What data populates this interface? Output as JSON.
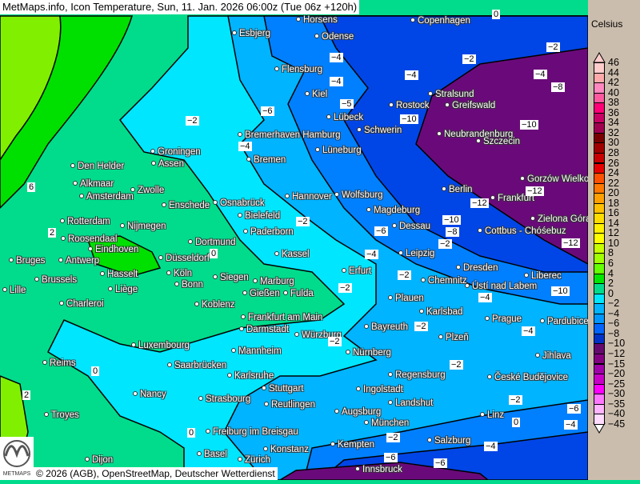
{
  "title": "MetMaps.info, Icon Temperature, Sun, 11. Jan. 2026 06:00z (Tue 06z +120h)",
  "copyright": "© 2026 (AGB), OpenStreetMap, Deutscher Wetterdienst",
  "logo_text": "METMAPS",
  "legend": {
    "unit": "Celsius",
    "labels": [
      "46",
      "44",
      "42",
      "40",
      "38",
      "36",
      "34",
      "32",
      "30",
      "28",
      "26",
      "24",
      "22",
      "20",
      "18",
      "16",
      "14",
      "12",
      "10",
      "8",
      "6",
      "4",
      "2",
      "0",
      "−2",
      "−4",
      "−6",
      "−8",
      "−10",
      "−12",
      "−15",
      "−20",
      "−25",
      "−30",
      "−35",
      "−40",
      "−45"
    ],
    "colors": [
      "#ffcccc",
      "#ffaaaa",
      "#ff88c0",
      "#ff5aa0",
      "#ff0078",
      "#c80064",
      "#a00050",
      "#780000",
      "#a00000",
      "#c80000",
      "#e60000",
      "#ff5000",
      "#ff7800",
      "#ffa000",
      "#ffc000",
      "#ffdc00",
      "#fff000",
      "#ffff00",
      "#c8ff00",
      "#a0ff00",
      "#64ff00",
      "#00e600",
      "#00dc8c",
      "#00e6ff",
      "#00b4ff",
      "#0096ff",
      "#0064ff",
      "#0032c8",
      "#640a6e",
      "#820082",
      "#a000aa",
      "#c800c8",
      "#ff00ff",
      "#ff78ff",
      "#ffb4ff",
      "#ffdcff"
    ]
  },
  "cities": [
    "Horsens",
    "Copenhagen",
    "Esbjerg",
    "Odense",
    "Flensburg",
    "Kiel",
    "Stralsund",
    "Rostock",
    "Greifswald",
    "Lübeck",
    "Schwerin",
    "Neubrandenburg",
    "Szczecin",
    "Bremerhaven Hamburg",
    "Bremen",
    "Lüneburg",
    "Groningen",
    "Den Helder",
    "Assen",
    "Gorzów Wielkopolski",
    "Alkmaar",
    "Zwolle",
    "Amsterdam",
    "Berlin",
    "Frankfurt",
    "Hannover",
    "Wolfsburg",
    "Enschede",
    "Osnabrück",
    "Magdeburg",
    "Bielefeld",
    "Zielona Góra",
    "Rotterdam",
    "Nijmegen",
    "Dessau",
    "Paderborn",
    "Cottbus - Chóśebuz",
    "Roosendaal",
    "Eindhoven",
    "Dortmund",
    "Leipzig",
    "Kassel",
    "Bruges",
    "Antwerp",
    "Düsseldorf",
    "Dresden",
    "Erfurt",
    "Brussels",
    "Hasselt",
    "Köln",
    "Siegen",
    "Marburg",
    "Chemnitz",
    "Ústí nad Labem",
    "Liberec",
    "Lille",
    "Liège",
    "Bonn",
    "Gießen",
    "Fulda",
    "Plauen",
    "Charleroi",
    "Koblenz",
    "Karlsbad",
    "Prague",
    "Pardubice",
    "Frankfurt am Main",
    "Bayreuth",
    "Darmstadt",
    "Würzburg",
    "Plzeň",
    "Luxembourg",
    "Mannheim",
    "Nürnberg",
    "Jihlava",
    "Reims",
    "Saarbrücken",
    "Regensburg",
    "České Budějovice",
    "Karlsruhe",
    "Stuttgart",
    "Ingolstadt",
    "Nancy",
    "Strasbourg",
    "Landshut",
    "Reutlingen",
    "Augsburg",
    "Linz",
    "Troyes",
    "München",
    "Freiburg im Breisgau",
    "Salzburg",
    "Kempten",
    "Konstanz",
    "Basel",
    "Zürich",
    "Innsbruck",
    "Dijon"
  ],
  "contour_labels": [
    "0",
    "−2",
    "−2",
    "−4",
    "−4",
    "−4",
    "−4",
    "−8",
    "−5",
    "−6",
    "−2",
    "−10",
    "−10",
    "−4",
    "6",
    "−12",
    "−12",
    "−2",
    "−10",
    "−6",
    "−8",
    "−12",
    "2",
    "−4",
    "0",
    "−2",
    "−2",
    "−2",
    "−4",
    "−10",
    "−2",
    "−4",
    "0",
    "−2",
    "−2",
    "−6",
    "2",
    "0",
    "−4",
    "−2",
    "−6",
    "0",
    "−6",
    "−2",
    "−4"
  ]
}
